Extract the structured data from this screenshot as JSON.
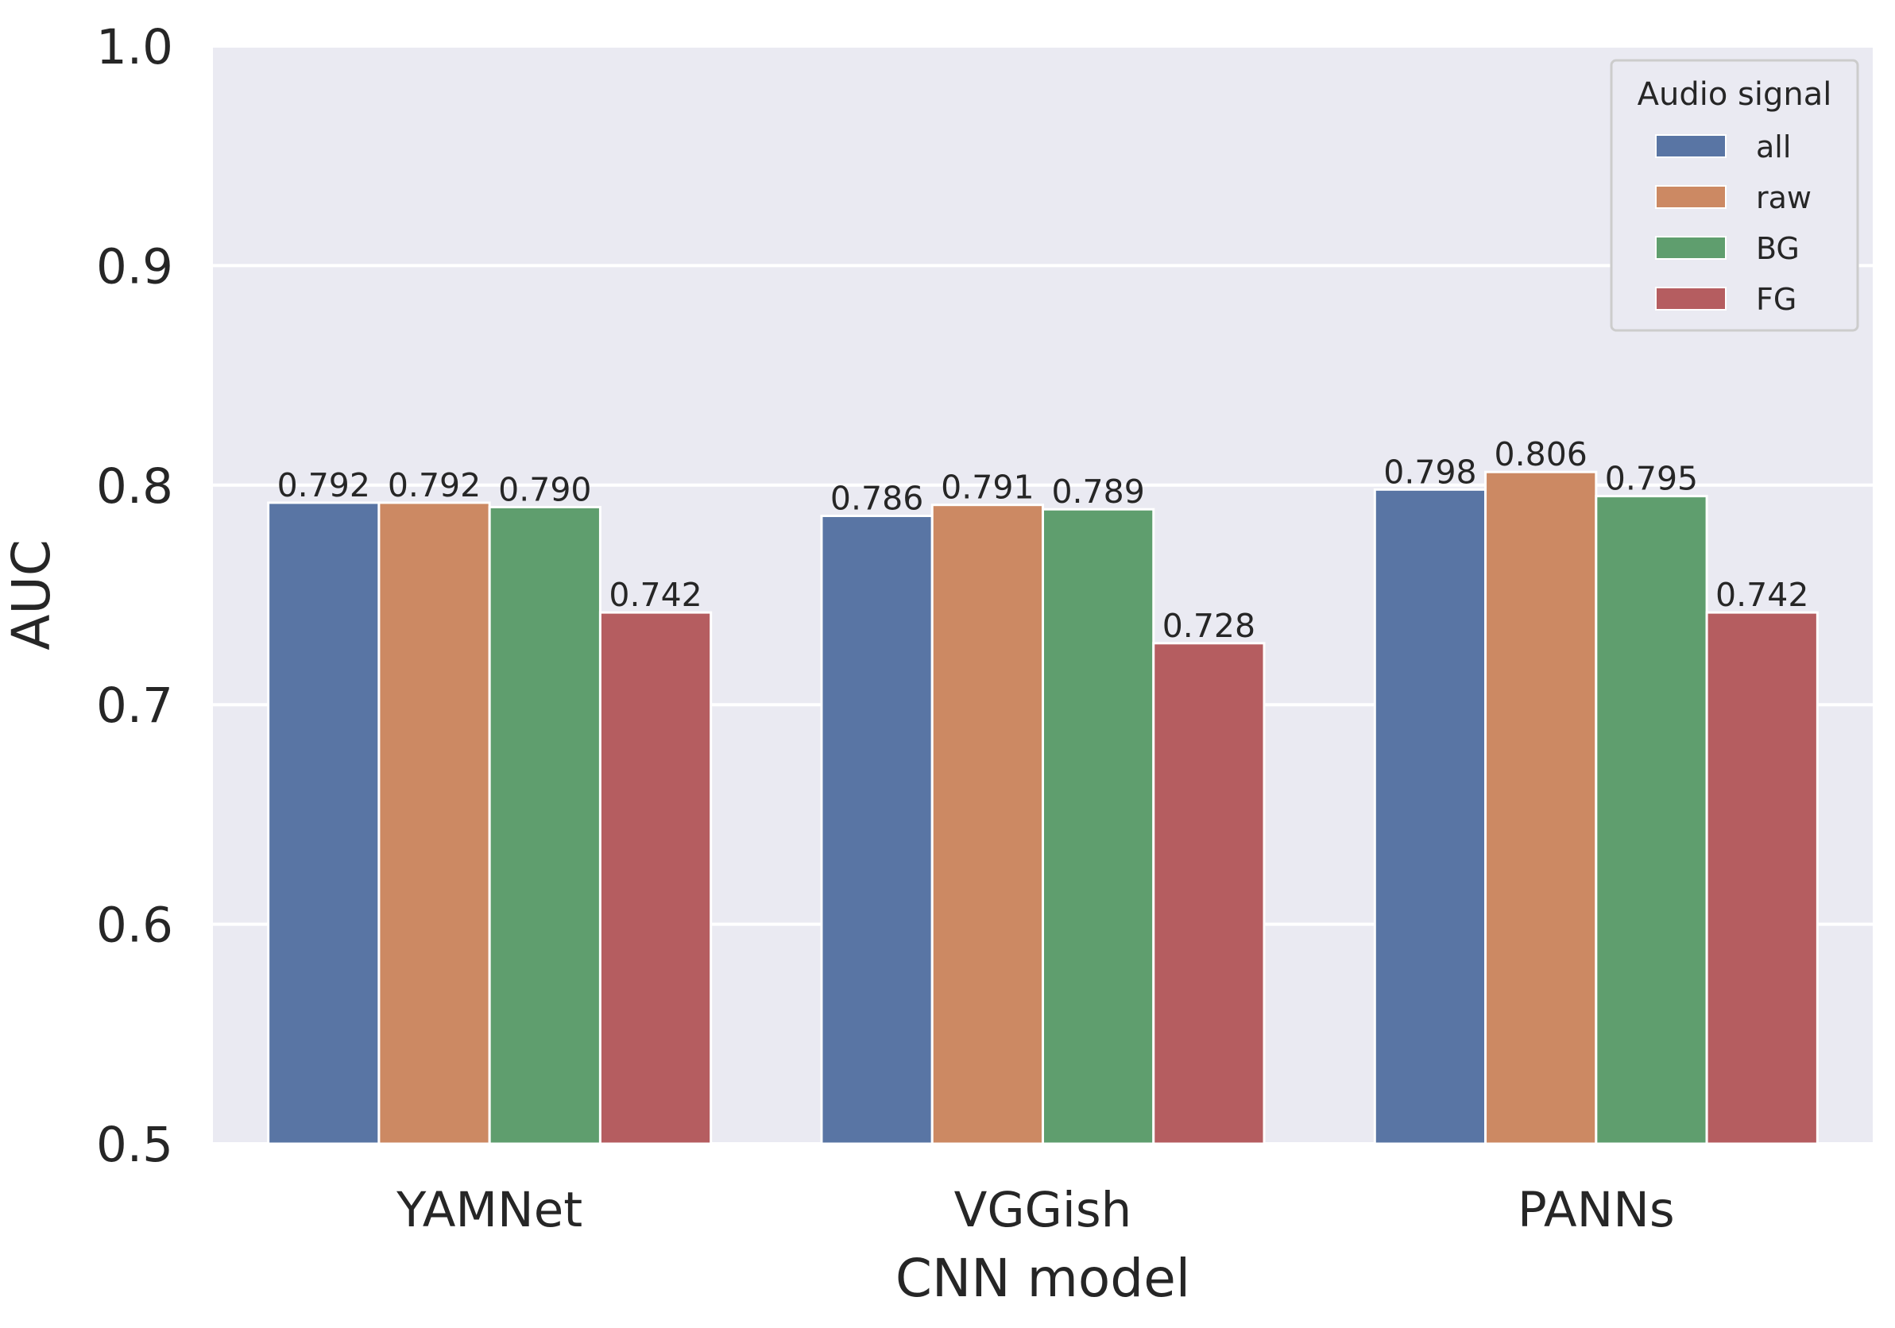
{
  "chart_data": {
    "type": "bar",
    "title": "",
    "xlabel": "CNN model",
    "ylabel": "AUC",
    "ylim": [
      0.5,
      1.0
    ],
    "yticks": [
      "0.5",
      "0.6",
      "0.7",
      "0.8",
      "0.9",
      "1.0"
    ],
    "categories": [
      "YAMNet",
      "VGGish",
      "PANNs"
    ],
    "grid": true,
    "legend": {
      "title": "Audio signal",
      "position": "top-right"
    },
    "series": [
      {
        "name": "all",
        "color": "#5975a4",
        "values": [
          0.792,
          0.786,
          0.798
        ],
        "labels": [
          "0.792",
          "0.786",
          "0.798"
        ]
      },
      {
        "name": "raw",
        "color": "#cc8963",
        "values": [
          0.792,
          0.791,
          0.806
        ],
        "labels": [
          "0.792",
          "0.791",
          "0.806"
        ]
      },
      {
        "name": "BG",
        "color": "#5f9e6e",
        "values": [
          0.79,
          0.789,
          0.795
        ],
        "labels": [
          "0.790",
          "0.789",
          "0.795"
        ]
      },
      {
        "name": "FG",
        "color": "#b55d60",
        "values": [
          0.742,
          0.728,
          0.742
        ],
        "labels": [
          "0.742",
          "0.728",
          "0.742"
        ]
      }
    ],
    "background_color": "#eaeaf2",
    "grid_color": "#ffffff"
  }
}
